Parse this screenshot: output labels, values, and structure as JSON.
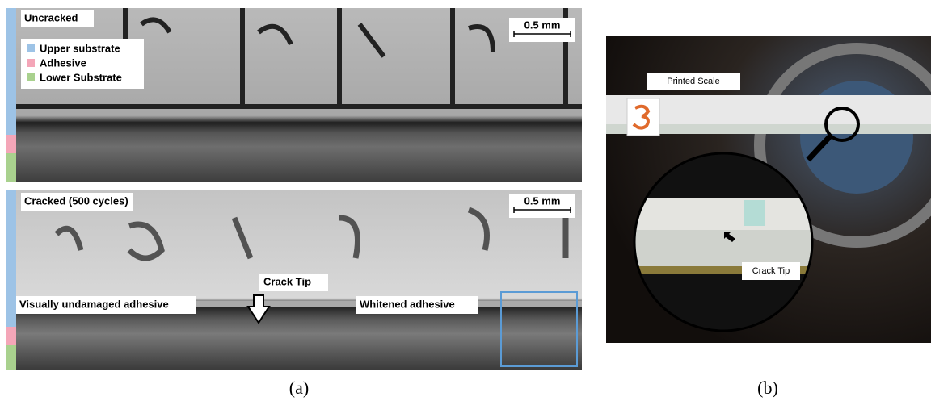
{
  "panel_a": {
    "top": {
      "label": "Uncracked",
      "legend": [
        "Upper substrate",
        "Adhesive",
        "Lower Substrate"
      ],
      "scale_bar": "0.5 mm"
    },
    "bottom": {
      "label": "Cracked (500 cycles)",
      "scale_bar": "0.5 mm",
      "crack_tip": "Crack Tip",
      "left_region": "Visually undamaged adhesive",
      "right_region": "Whitened adhesive"
    },
    "caption": "(a)"
  },
  "panel_b": {
    "label": "Printed Scale",
    "crack_tip": "Crack Tip",
    "caption": "(b)"
  }
}
